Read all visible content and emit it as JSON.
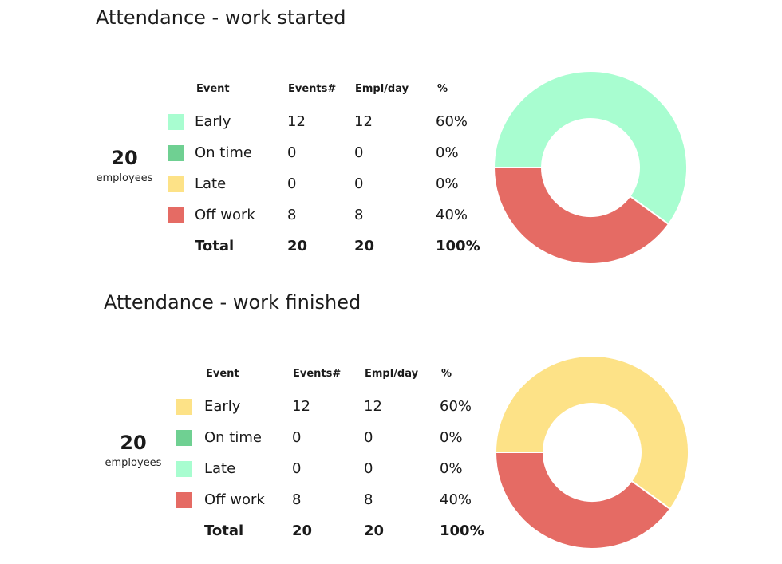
{
  "sections": [
    {
      "title": "Attendance - work started",
      "employees": {
        "count": "20",
        "label": "employees"
      },
      "headers": {
        "event": "Event",
        "events": "Events#",
        "empl": "Empl/day",
        "pct": "%"
      },
      "rows": [
        {
          "label": "Early",
          "events": "12",
          "empl": "12",
          "pct": "60%",
          "color": "#a8fdd0"
        },
        {
          "label": "On time",
          "events": "0",
          "empl": "0",
          "pct": "0%",
          "color": "#6fd092"
        },
        {
          "label": "Late",
          "events": "0",
          "empl": "0",
          "pct": "0%",
          "color": "#fde287"
        },
        {
          "label": "Off work",
          "events": "8",
          "empl": "8",
          "pct": "40%",
          "color": "#e56b64"
        }
      ],
      "total": {
        "label": "Total",
        "events": "20",
        "empl": "20",
        "pct": "100%"
      }
    },
    {
      "title": "Attendance - work finished",
      "employees": {
        "count": "20",
        "label": "employees"
      },
      "headers": {
        "event": "Event",
        "events": "Events#",
        "empl": "Empl/day",
        "pct": "%"
      },
      "rows": [
        {
          "label": "Early",
          "events": "12",
          "empl": "12",
          "pct": "60%",
          "color": "#fde287"
        },
        {
          "label": "On time",
          "events": "0",
          "empl": "0",
          "pct": "0%",
          "color": "#6fd092"
        },
        {
          "label": "Late",
          "events": "0",
          "empl": "0",
          "pct": "0%",
          "color": "#a8fdd0"
        },
        {
          "label": "Off work",
          "events": "8",
          "empl": "8",
          "pct": "40%",
          "color": "#e56b64"
        }
      ],
      "total": {
        "label": "Total",
        "events": "20",
        "empl": "20",
        "pct": "100%"
      }
    }
  ],
  "chart_data": [
    {
      "type": "pie",
      "variant": "donut",
      "categories": [
        "Early",
        "On time",
        "Late",
        "Off work"
      ],
      "values": [
        12,
        0,
        0,
        8
      ],
      "colors": [
        "#a8fdd0",
        "#6fd092",
        "#fde287",
        "#e56b64"
      ]
    },
    {
      "type": "pie",
      "variant": "donut",
      "categories": [
        "Early",
        "On time",
        "Late",
        "Off work"
      ],
      "values": [
        12,
        0,
        0,
        8
      ],
      "colors": [
        "#fde287",
        "#6fd092",
        "#a8fdd0",
        "#e56b64"
      ]
    }
  ]
}
